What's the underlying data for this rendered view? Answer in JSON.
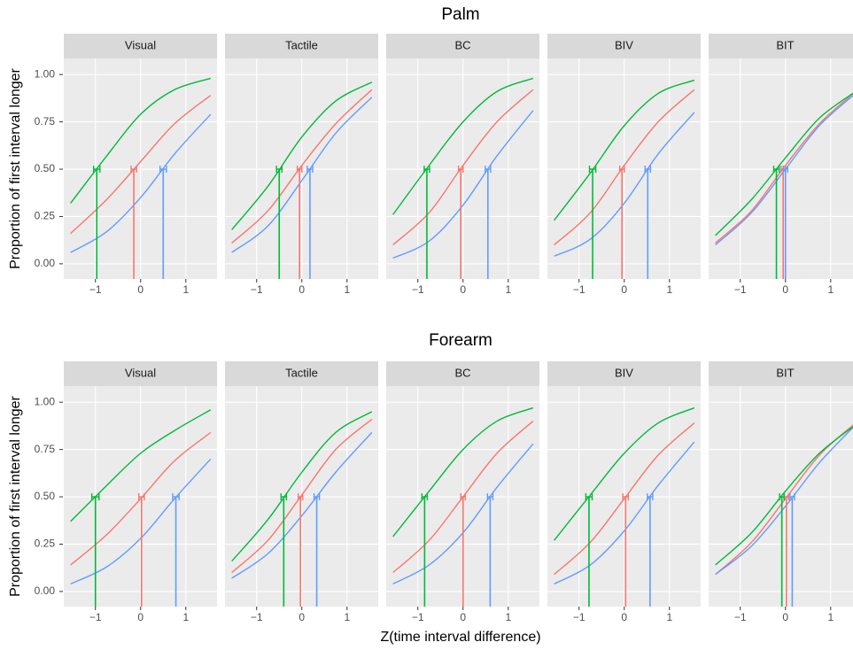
{
  "chart_data": [
    {
      "type": "line",
      "title": "Palm",
      "ylabel": "Proportion of first interval longer",
      "x": [
        -1.55,
        -0.75,
        0,
        0.75,
        1.55
      ],
      "xlim": [
        -1.7,
        1.69
      ],
      "ylim": [
        -0.08,
        1.085
      ],
      "xticks": [
        {
          "value": -1,
          "label": "−1"
        },
        0,
        1
      ],
      "yticks": [
        {
          "value": 0,
          "label": "0.00"
        },
        {
          "value": 0.25,
          "label": "0.25"
        },
        {
          "value": 0.5,
          "label": "0.50"
        },
        {
          "value": 0.75,
          "label": "0.75"
        },
        {
          "value": 1,
          "label": "1.00"
        }
      ],
      "grid": true,
      "panels": [
        {
          "title": "Visual",
          "series": [
            {
              "color": "#F8766D",
              "values": [
                0.16,
                0.34,
                0.54,
                0.74,
                0.89
              ],
              "pse": -0.15,
              "pse_err": 0.06
            },
            {
              "color": "#619CFF",
              "values": [
                0.06,
                0.17,
                0.35,
                0.58,
                0.79
              ],
              "pse": 0.5,
              "pse_err": 0.07
            },
            {
              "color": "#00BA38",
              "values": [
                0.32,
                0.57,
                0.79,
                0.92,
                0.98
              ],
              "pse": -0.97,
              "pse_err": 0.07
            }
          ]
        },
        {
          "title": "Tactile",
          "series": [
            {
              "color": "#F8766D",
              "values": [
                0.11,
                0.28,
                0.52,
                0.74,
                0.92
              ],
              "pse": -0.05,
              "pse_err": 0.05
            },
            {
              "color": "#619CFF",
              "values": [
                0.06,
                0.2,
                0.44,
                0.69,
                0.88
              ],
              "pse": 0.18,
              "pse_err": 0.06
            },
            {
              "color": "#00BA38",
              "values": [
                0.18,
                0.41,
                0.67,
                0.86,
                0.96
              ],
              "pse": -0.5,
              "pse_err": 0.06
            }
          ]
        },
        {
          "title": "BC",
          "series": [
            {
              "color": "#F8766D",
              "values": [
                0.1,
                0.27,
                0.52,
                0.75,
                0.92
              ],
              "pse": -0.05,
              "pse_err": 0.05
            },
            {
              "color": "#619CFF",
              "values": [
                0.03,
                0.12,
                0.31,
                0.57,
                0.81
              ],
              "pse": 0.55,
              "pse_err": 0.06
            },
            {
              "color": "#00BA38",
              "values": [
                0.26,
                0.52,
                0.75,
                0.91,
                0.98
              ],
              "pse": -0.8,
              "pse_err": 0.06
            }
          ]
        },
        {
          "title": "BIV",
          "series": [
            {
              "color": "#F8766D",
              "values": [
                0.1,
                0.27,
                0.52,
                0.75,
                0.92
              ],
              "pse": -0.05,
              "pse_err": 0.05
            },
            {
              "color": "#619CFF",
              "values": [
                0.04,
                0.13,
                0.32,
                0.58,
                0.8
              ],
              "pse": 0.52,
              "pse_err": 0.06
            },
            {
              "color": "#00BA38",
              "values": [
                0.23,
                0.48,
                0.73,
                0.9,
                0.97
              ],
              "pse": -0.7,
              "pse_err": 0.07
            }
          ]
        },
        {
          "title": "BIT",
          "series": [
            {
              "color": "#F8766D",
              "values": [
                0.11,
                0.28,
                0.52,
                0.74,
                0.91
              ],
              "pse": -0.05,
              "pse_err": 0.05
            },
            {
              "color": "#619CFF",
              "values": [
                0.1,
                0.27,
                0.5,
                0.73,
                0.9
              ],
              "pse": 0,
              "pse_err": 0.05
            },
            {
              "color": "#00BA38",
              "values": [
                0.15,
                0.34,
                0.56,
                0.77,
                0.91
              ],
              "pse": -0.2,
              "pse_err": 0.06
            }
          ]
        }
      ]
    },
    {
      "type": "line",
      "title": "Forearm",
      "ylabel": "Proportion of first interval longer",
      "xlabel": "Z(time interval difference)",
      "x": [
        -1.55,
        -0.75,
        0,
        0.75,
        1.55
      ],
      "xlim": [
        -1.7,
        1.69
      ],
      "ylim": [
        -0.08,
        1.085
      ],
      "xticks": [
        {
          "value": -1,
          "label": "−1"
        },
        0,
        1
      ],
      "yticks": [
        {
          "value": 0,
          "label": "0.00"
        },
        {
          "value": 0.25,
          "label": "0.25"
        },
        {
          "value": 0.5,
          "label": "0.50"
        },
        {
          "value": 0.75,
          "label": "0.75"
        },
        {
          "value": 1,
          "label": "1.00"
        }
      ],
      "grid": true,
      "panels": [
        {
          "title": "Visual",
          "series": [
            {
              "color": "#F8766D",
              "values": [
                0.14,
                0.3,
                0.49,
                0.69,
                0.84
              ],
              "pse": 0.02,
              "pse_err": 0.06
            },
            {
              "color": "#619CFF",
              "values": [
                0.04,
                0.13,
                0.28,
                0.49,
                0.7
              ],
              "pse": 0.78,
              "pse_err": 0.07
            },
            {
              "color": "#00BA38",
              "values": [
                0.37,
                0.56,
                0.73,
                0.85,
                0.96
              ],
              "pse": -1.0,
              "pse_err": 0.08
            }
          ]
        },
        {
          "title": "Tactile",
          "series": [
            {
              "color": "#F8766D",
              "values": [
                0.1,
                0.27,
                0.51,
                0.75,
                0.91
              ],
              "pse": -0.03,
              "pse_err": 0.05
            },
            {
              "color": "#619CFF",
              "values": [
                0.07,
                0.2,
                0.4,
                0.63,
                0.84
              ],
              "pse": 0.33,
              "pse_err": 0.06
            },
            {
              "color": "#00BA38",
              "values": [
                0.16,
                0.38,
                0.63,
                0.84,
                0.95
              ],
              "pse": -0.4,
              "pse_err": 0.06
            }
          ]
        },
        {
          "title": "BC",
          "series": [
            {
              "color": "#F8766D",
              "values": [
                0.1,
                0.27,
                0.5,
                0.73,
                0.9
              ],
              "pse": 0,
              "pse_err": 0.05
            },
            {
              "color": "#619CFF",
              "values": [
                0.04,
                0.14,
                0.31,
                0.55,
                0.78
              ],
              "pse": 0.6,
              "pse_err": 0.06
            },
            {
              "color": "#00BA38",
              "values": [
                0.29,
                0.53,
                0.75,
                0.9,
                0.97
              ],
              "pse": -0.85,
              "pse_err": 0.06
            }
          ]
        },
        {
          "title": "BIV",
          "series": [
            {
              "color": "#F8766D",
              "values": [
                0.09,
                0.26,
                0.49,
                0.72,
                0.89
              ],
              "pse": 0.03,
              "pse_err": 0.06
            },
            {
              "color": "#619CFF",
              "values": [
                0.04,
                0.14,
                0.32,
                0.56,
                0.79
              ],
              "pse": 0.57,
              "pse_err": 0.06
            },
            {
              "color": "#00BA38",
              "values": [
                0.27,
                0.51,
                0.73,
                0.89,
                0.97
              ],
              "pse": -0.78,
              "pse_err": 0.07
            }
          ]
        },
        {
          "title": "BIT",
          "series": [
            {
              "color": "#F8766D",
              "values": [
                0.09,
                0.26,
                0.49,
                0.72,
                0.89
              ],
              "pse": 0.02,
              "pse_err": 0.05
            },
            {
              "color": "#619CFF",
              "values": [
                0.09,
                0.24,
                0.45,
                0.68,
                0.88
              ],
              "pse": 0.15,
              "pse_err": 0.05
            },
            {
              "color": "#00BA38",
              "values": [
                0.14,
                0.31,
                0.53,
                0.73,
                0.88
              ],
              "pse": -0.08,
              "pse_err": 0.05
            }
          ]
        }
      ]
    }
  ]
}
